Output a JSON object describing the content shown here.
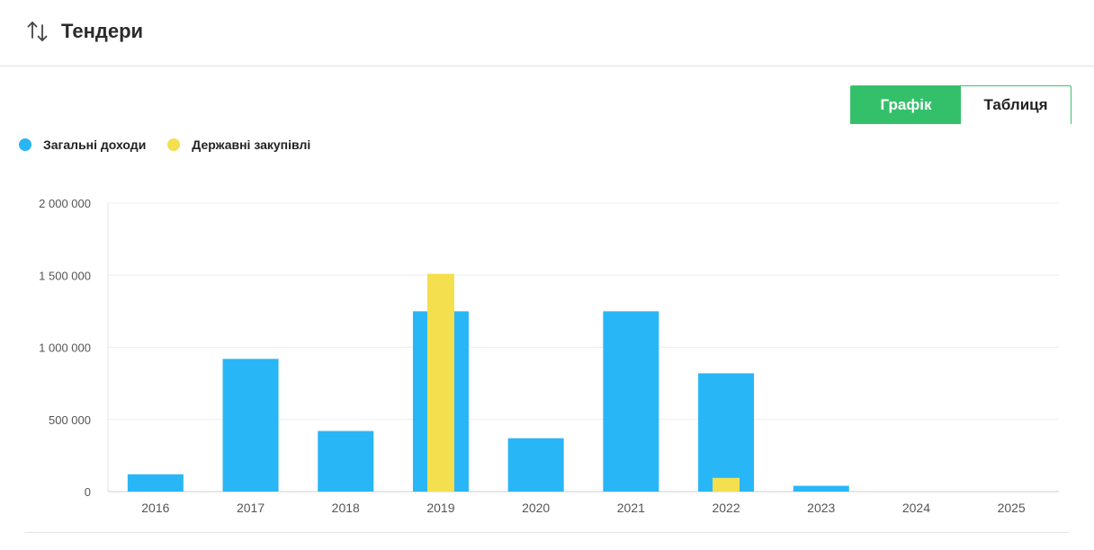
{
  "header": {
    "title": "Тендери",
    "icon": "sort-arrows-icon"
  },
  "toggle": {
    "chart_label": "Графік",
    "table_label": "Таблиця",
    "active": "chart"
  },
  "colors": {
    "total_income": "#29b6f6",
    "procurement": "#f4df4e",
    "accent": "#34c06a"
  },
  "chart_data": {
    "type": "bar",
    "categories": [
      "2016",
      "2017",
      "2018",
      "2019",
      "2020",
      "2021",
      "2022",
      "2023",
      "2024",
      "2025"
    ],
    "series": [
      {
        "name": "Загальні доходи",
        "values": [
          120000,
          920000,
          420000,
          1250000,
          370000,
          1250000,
          820000,
          40000,
          0,
          0
        ]
      },
      {
        "name": "Державні закупівлі",
        "values": [
          0,
          0,
          0,
          1510000,
          0,
          0,
          95000,
          0,
          0,
          0
        ]
      }
    ],
    "ylim": [
      0,
      2000000
    ],
    "yticks": [
      "0",
      "500 000",
      "1 000 000",
      "1 500 000",
      "2 000 000"
    ],
    "grid": true,
    "legend": "top-left"
  }
}
